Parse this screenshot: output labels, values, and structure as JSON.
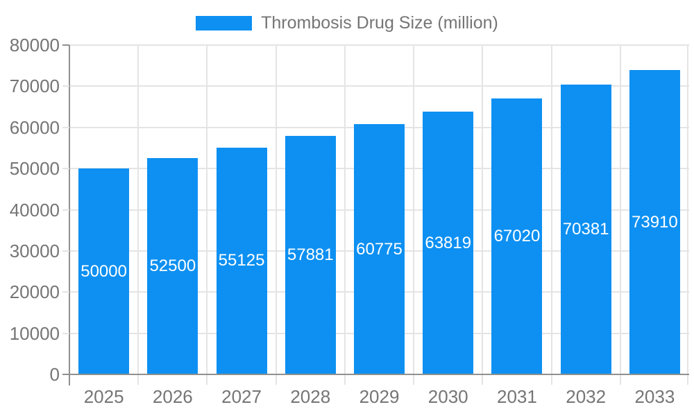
{
  "chart_data": {
    "type": "bar",
    "title": "",
    "series_name": "Thrombosis Drug Size (million)",
    "categories": [
      "2025",
      "2026",
      "2027",
      "2028",
      "2029",
      "2030",
      "2031",
      "2032",
      "2033"
    ],
    "values": [
      50000,
      52500,
      55125,
      57881,
      60775,
      63819,
      67020,
      70381,
      73910
    ],
    "xlabel": "",
    "ylabel": "",
    "ylim": [
      0,
      80000
    ],
    "ytick_step": 10000,
    "yticks": [
      0,
      10000,
      20000,
      30000,
      40000,
      50000,
      60000,
      70000,
      80000
    ],
    "grid": true,
    "grid_directions": "horizontal and vertical",
    "value_labels": "inside bars, vertically centered, white",
    "legend_position": "top-center",
    "colors": {
      "bar": "#0d90f2",
      "axis": "#8f8f8f",
      "grid": "#e4e4e4",
      "tick_label": "#757575",
      "bar_label": "#ffffff",
      "background": "#ffffff"
    }
  }
}
